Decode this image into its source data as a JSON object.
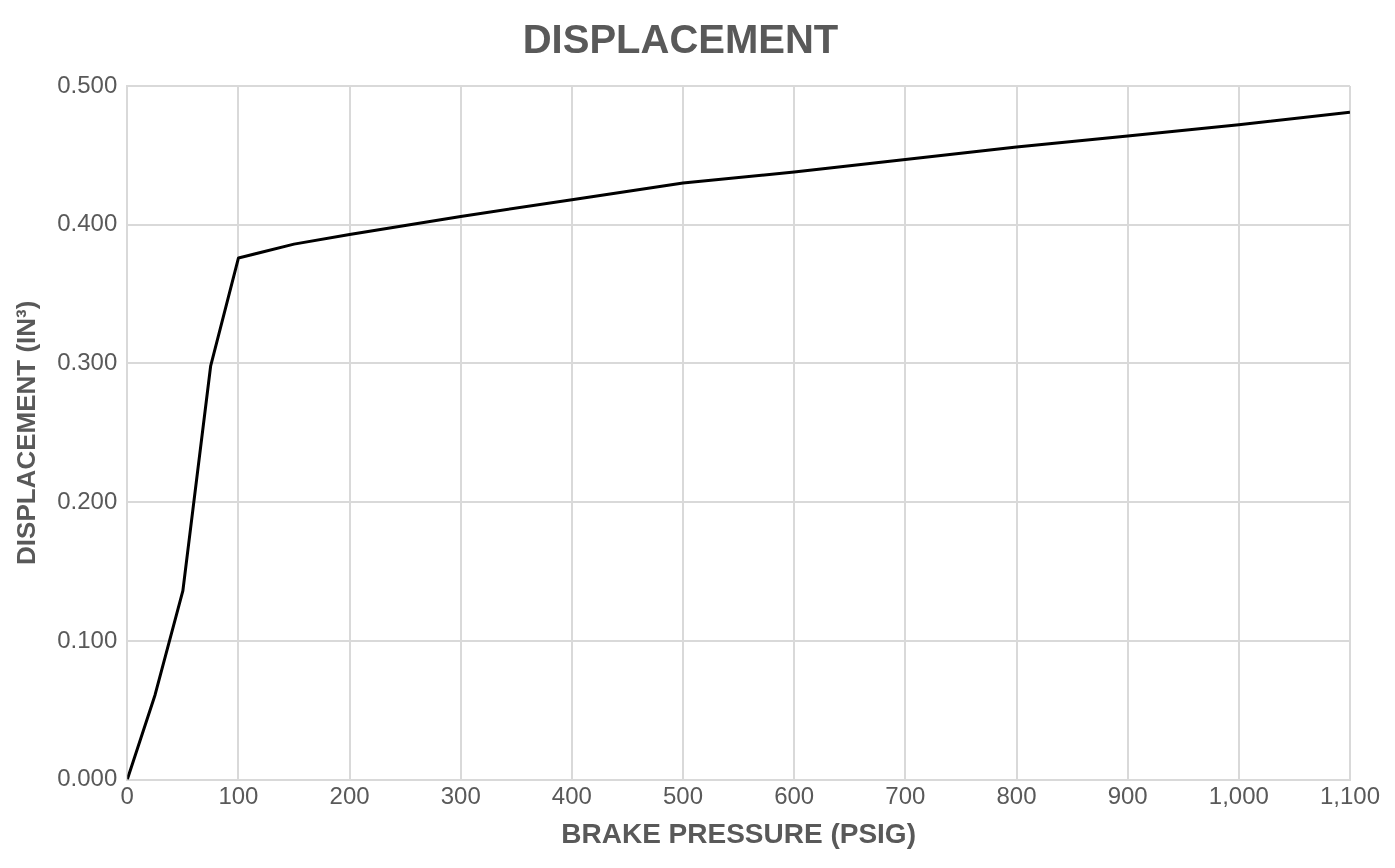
{
  "chart_data": {
    "type": "line",
    "title": "DISPLACEMENT",
    "xlabel": "BRAKE PRESSURE (PSIG)",
    "ylabel": "DISPLACEMENT (IN³)",
    "x": [
      0,
      25,
      50,
      75,
      100,
      150,
      200,
      300,
      400,
      500,
      600,
      700,
      800,
      900,
      1000,
      1100
    ],
    "series": [
      {
        "color": "#000000",
        "values": [
          0,
          0.061,
          0.136,
          0.298,
          0.376,
          0.386,
          0.393,
          0.406,
          0.418,
          0.43,
          0.438,
          0.447,
          0.456,
          0.464,
          0.472,
          0.481
        ]
      }
    ],
    "xlim": [
      0,
      1100
    ],
    "xticks": [
      0,
      100,
      200,
      300,
      400,
      500,
      600,
      700,
      800,
      900,
      {
        "value": 1000,
        "label": "1,000"
      },
      {
        "value": 1100,
        "label": "1,100"
      }
    ],
    "ylim": [
      0,
      0.5
    ],
    "yticks": [
      {
        "value": 0,
        "label": "0.000"
      },
      {
        "value": 0.1,
        "label": "0.100"
      },
      {
        "value": 0.2,
        "label": "0.200"
      },
      {
        "value": 0.3,
        "label": "0.300"
      },
      {
        "value": 0.4,
        "label": "0.400"
      },
      {
        "value": 0.5,
        "label": "0.500"
      }
    ],
    "grid": true,
    "legend": false,
    "marker": "none",
    "line_style": "solid"
  }
}
